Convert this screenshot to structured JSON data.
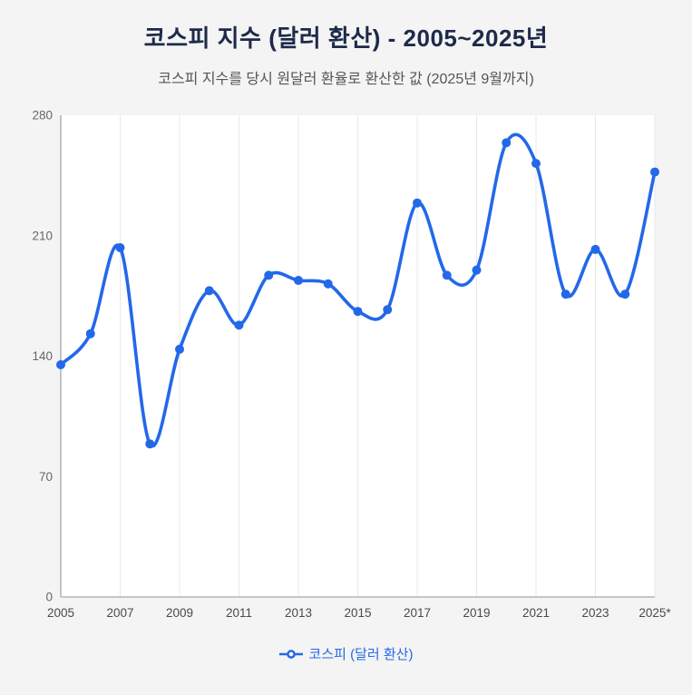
{
  "page": {
    "title": "코스피 지수 (달러 환산) - 2005~2025년",
    "subtitle": "코스피 지수를 당시 원달러 환율로 환산한 값 (2025년 9월까지)"
  },
  "legend": {
    "label": "코스피 (달러 환산)"
  },
  "colors": {
    "line": "#2368e9",
    "marker": "#2368e9",
    "title": "#1e2a4a",
    "subtitle": "#555555",
    "axis": "#a8a8a8",
    "grid": "#e8e8e8",
    "ytick": "#666666",
    "xtick": "#4a4a4a",
    "page_background": "#f3f4f3"
  },
  "chart_data": {
    "type": "line",
    "title": "코스피 지수 (달러 환산) - 2005~2025년",
    "subtitle": "코스피 지수를 당시 원달러 환율로 환산한 값 (2025년 9월까지)",
    "xlabel": "",
    "ylabel": "",
    "categories": [
      "2005",
      "2006",
      "2007",
      "2008",
      "2009",
      "2010",
      "2011",
      "2012",
      "2013",
      "2014",
      "2015",
      "2016",
      "2017",
      "2018",
      "2019",
      "2020",
      "2021",
      "2022",
      "2023",
      "2024",
      "2025*"
    ],
    "x_tick_labels": [
      "2005",
      "2007",
      "2009",
      "2011",
      "2013",
      "2015",
      "2017",
      "2019",
      "2021",
      "2023",
      "2025*"
    ],
    "x_tick_indices": [
      0,
      2,
      4,
      6,
      8,
      10,
      12,
      14,
      16,
      18,
      20
    ],
    "series": [
      {
        "name": "코스피 (달러 환산)",
        "values": [
          135,
          153,
          203,
          89,
          144,
          178,
          158,
          187,
          184,
          182,
          166,
          167,
          229,
          187,
          190,
          264,
          252,
          176,
          202,
          176,
          247
        ]
      }
    ],
    "ylim": [
      0,
      280
    ],
    "yticks": [
      0,
      70,
      140,
      210,
      280
    ],
    "grid": "vertical",
    "legend_position": "bottom",
    "marker": "circle",
    "smooth": true
  }
}
